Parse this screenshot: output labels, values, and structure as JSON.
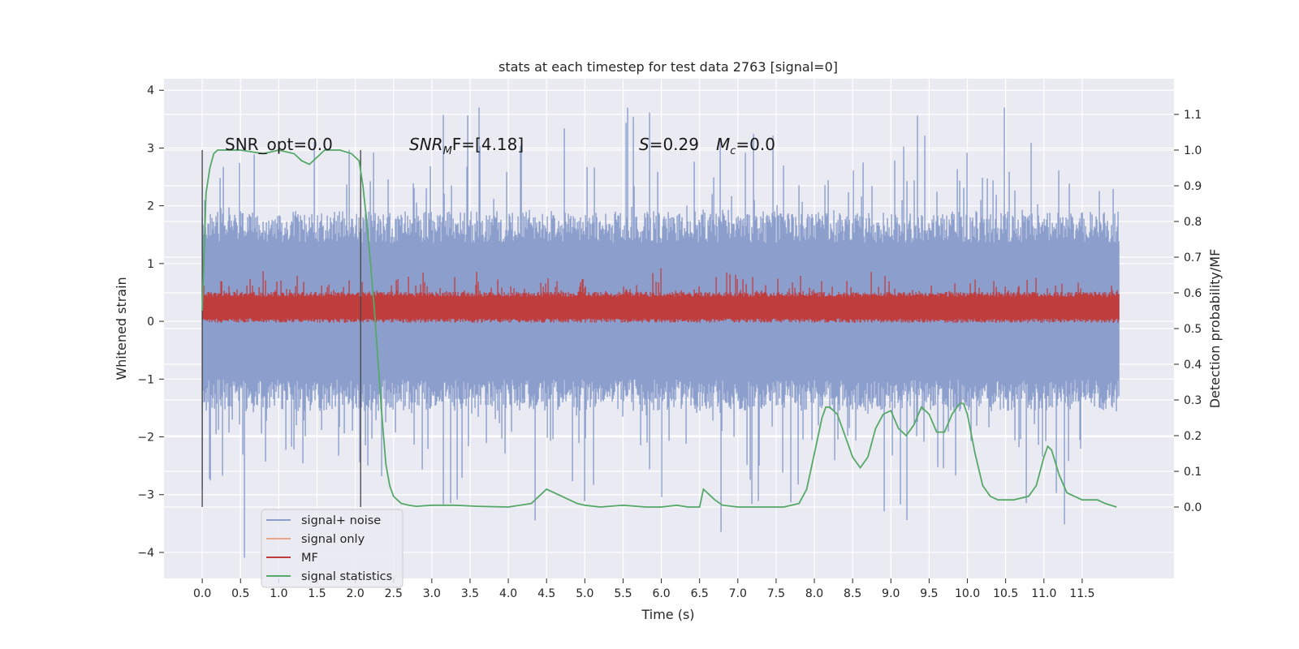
{
  "chart_data": {
    "type": "line",
    "title": "stats at each timestep for test data 2763 [signal=0]",
    "xlabel": "Time (s)",
    "ylabel": "Whitened strain",
    "y2label": "Detection probability/MF",
    "xlim": [
      -0.5,
      12.7
    ],
    "ylim": [
      -4.45,
      4.2
    ],
    "y2lim": [
      -0.2,
      1.2
    ],
    "x_ticks": [
      "0.0",
      "0.5",
      "1.0",
      "1.5",
      "2.0",
      "2.5",
      "3.0",
      "3.5",
      "4.0",
      "4.5",
      "5.0",
      "5.5",
      "6.0",
      "6.5",
      "7.0",
      "7.5",
      "8.0",
      "8.5",
      "9.0",
      "9.5",
      "10.0",
      "10.5",
      "11.0",
      "11.5"
    ],
    "y_ticks": [
      "4",
      "3",
      "2",
      "1",
      "0",
      "−1",
      "−2",
      "−3",
      "−4"
    ],
    "y2_ticks": [
      "0.0",
      "0.1",
      "0.2",
      "0.3",
      "0.4",
      "0.5",
      "0.6",
      "0.7",
      "0.8",
      "0.9",
      "1.0",
      "1.1"
    ],
    "grid": true,
    "legend": {
      "placement": "lower-left",
      "entries": [
        {
          "name": "signal+ noise",
          "color": "#8c9fcc"
        },
        {
          "name": "signal only",
          "color": "#e8a583"
        },
        {
          "name": "MF",
          "color": "#c03d3e"
        },
        {
          "name": "signal statistics",
          "color": "#55a868"
        }
      ]
    },
    "annotations": {
      "snr_opt": "SNR_opt=0.0",
      "snr_mf_label": "SNR",
      "snr_mf_sub": "M",
      "snr_mf_tail": "F=[4.18]",
      "s_label": "S",
      "s_val": "=0.29",
      "mc_label": "M",
      "mc_sub": "c",
      "mc_val": "=0.0"
    },
    "window_markers_x": [
      0.0,
      2.07
    ],
    "series": [
      {
        "name": "signal+ noise",
        "axis": "left",
        "color": "#8c9fcc",
        "x_range": [
          0.0,
          11.99
        ],
        "typical_range": [
          -1.4,
          1.75
        ],
        "extreme_range": [
          -4.1,
          3.7
        ],
        "style": "dense noise trace"
      },
      {
        "name": "MF",
        "axis": "left",
        "color": "#c03d3e",
        "x_range": [
          0.0,
          11.99
        ],
        "typical_range": [
          0.0,
          0.5
        ],
        "extreme_range": [
          -0.05,
          1.0
        ],
        "style": "dense noise trace"
      },
      {
        "name": "signal statistics",
        "axis": "right",
        "color": "#55a868",
        "x": [
          0.0,
          0.05,
          0.1,
          0.15,
          0.2,
          0.3,
          0.5,
          0.8,
          1.0,
          1.2,
          1.3,
          1.4,
          1.5,
          1.6,
          1.8,
          1.95,
          2.05,
          2.1,
          2.15,
          2.2,
          2.25,
          2.3,
          2.35,
          2.4,
          2.45,
          2.5,
          2.55,
          2.6,
          2.7,
          2.8,
          3.0,
          3.3,
          3.6,
          4.0,
          4.3,
          4.5,
          4.7,
          4.9,
          5.0,
          5.2,
          5.5,
          5.8,
          6.0,
          6.2,
          6.35,
          6.5,
          6.55,
          6.7,
          6.8,
          7.0,
          7.3,
          7.6,
          7.8,
          7.9,
          8.0,
          8.1,
          8.15,
          8.2,
          8.3,
          8.4,
          8.5,
          8.6,
          8.7,
          8.8,
          8.9,
          9.0,
          9.1,
          9.2,
          9.3,
          9.4,
          9.5,
          9.6,
          9.7,
          9.8,
          9.9,
          9.95,
          10.0,
          10.1,
          10.2,
          10.3,
          10.4,
          10.5,
          10.6,
          10.8,
          10.9,
          11.0,
          11.05,
          11.1,
          11.2,
          11.3,
          11.5,
          11.7,
          11.8,
          11.95
        ],
        "y": [
          0.55,
          0.88,
          0.95,
          0.99,
          1.0,
          1.0,
          1.0,
          0.99,
          1.0,
          0.99,
          0.97,
          0.96,
          0.98,
          1.0,
          1.0,
          0.99,
          0.97,
          0.9,
          0.8,
          0.68,
          0.55,
          0.4,
          0.25,
          0.12,
          0.06,
          0.03,
          0.02,
          0.01,
          0.005,
          0.002,
          0.005,
          0.005,
          0.002,
          0.0,
          0.01,
          0.05,
          0.03,
          0.01,
          0.005,
          0.0,
          0.005,
          0.0,
          0.0,
          0.005,
          0.0,
          0.0,
          0.05,
          0.02,
          0.005,
          0.0,
          0.0,
          0.0,
          0.01,
          0.05,
          0.15,
          0.25,
          0.28,
          0.28,
          0.26,
          0.2,
          0.14,
          0.11,
          0.14,
          0.22,
          0.26,
          0.27,
          0.22,
          0.2,
          0.23,
          0.28,
          0.26,
          0.21,
          0.21,
          0.26,
          0.29,
          0.29,
          0.26,
          0.15,
          0.06,
          0.03,
          0.02,
          0.02,
          0.02,
          0.03,
          0.06,
          0.14,
          0.17,
          0.16,
          0.09,
          0.04,
          0.02,
          0.02,
          0.01,
          0.0
        ]
      }
    ]
  }
}
